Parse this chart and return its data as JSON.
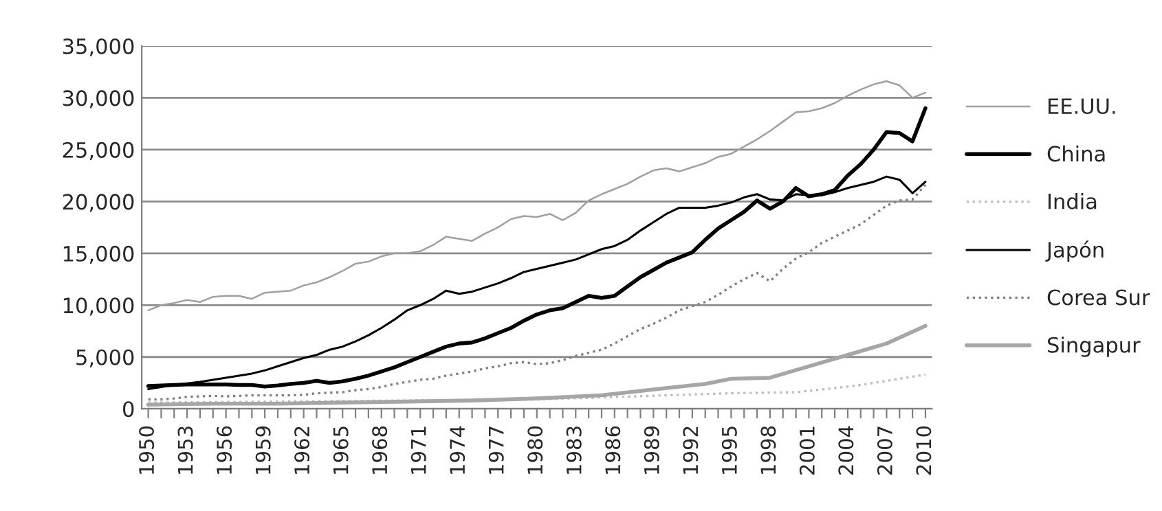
{
  "chart_data": {
    "type": "line",
    "x": [
      1950,
      1951,
      1952,
      1953,
      1954,
      1955,
      1956,
      1957,
      1958,
      1959,
      1960,
      1961,
      1962,
      1963,
      1964,
      1965,
      1966,
      1967,
      1968,
      1969,
      1970,
      1971,
      1972,
      1973,
      1974,
      1975,
      1976,
      1977,
      1978,
      1979,
      1980,
      1981,
      1982,
      1983,
      1984,
      1985,
      1986,
      1987,
      1988,
      1989,
      1990,
      1991,
      1992,
      1993,
      1994,
      1995,
      1996,
      1997,
      1998,
      1999,
      2000,
      2001,
      2002,
      2003,
      2004,
      2005,
      2006,
      2007,
      2008,
      2009,
      2010
    ],
    "series": [
      {
        "name": "EE.UU.",
        "color": "#a0a0a0",
        "line_style": "solid",
        "values": [
          9500,
          10000,
          10200,
          10500,
          10300,
          10800,
          10900,
          10900,
          10600,
          11200,
          11300,
          11400,
          11900,
          12200,
          12700,
          13300,
          14000,
          14200,
          14700,
          15000,
          15000,
          15200,
          15800,
          16600,
          16400,
          16200,
          16900,
          17500,
          18300,
          18600,
          18500,
          18800,
          18200,
          18900,
          20100,
          20700,
          21200,
          21700,
          22400,
          23000,
          23200,
          22900,
          23300,
          23700,
          24300,
          24600,
          25300,
          26000,
          26800,
          27700,
          28600,
          28700,
          29000,
          29500,
          30200,
          30800,
          31300,
          31600,
          31200,
          30000,
          30500
        ]
      },
      {
        "name": "China",
        "color": "#000000",
        "line_style": "solid",
        "values": [
          2200,
          2250,
          2300,
          2350,
          2350,
          2350,
          2350,
          2300,
          2300,
          2150,
          2250,
          2400,
          2500,
          2700,
          2500,
          2650,
          2900,
          3200,
          3600,
          4000,
          4500,
          5000,
          5500,
          6000,
          6300,
          6400,
          6800,
          7300,
          7800,
          8500,
          9100,
          9500,
          9700,
          10300,
          10900,
          10700,
          10900,
          11800,
          12700,
          13400,
          14100,
          14600,
          15100,
          16300,
          17400,
          18200,
          19000,
          20100,
          19300,
          20000,
          21300,
          20500,
          20700,
          21100,
          22500,
          23600,
          25000,
          26700,
          26600,
          25800,
          29000
        ]
      },
      {
        "name": "India",
        "color": "#bdbdbd",
        "line_style": "dotted",
        "x": [
          1950,
          1955,
          1960,
          1965,
          1970,
          1975,
          1980,
          1985,
          1990,
          1995,
          2000,
          2003,
          2005,
          2008,
          2010
        ],
        "values": [
          600,
          650,
          700,
          750,
          800,
          850,
          900,
          1100,
          1300,
          1500,
          1600,
          2000,
          2300,
          2900,
          3300
        ]
      },
      {
        "name": "Japón",
        "color": "#000000",
        "line_style": "solid",
        "values": [
          1900,
          2100,
          2300,
          2450,
          2600,
          2800,
          3000,
          3200,
          3400,
          3700,
          4100,
          4500,
          4900,
          5200,
          5700,
          6000,
          6500,
          7100,
          7800,
          8600,
          9500,
          10000,
          10600,
          11400,
          11100,
          11300,
          11700,
          12100,
          12600,
          13200,
          13500,
          13800,
          14100,
          14400,
          14900,
          15400,
          15700,
          16300,
          17200,
          18000,
          18800,
          19400,
          19400,
          19400,
          19600,
          19900,
          20400,
          20700,
          20200,
          20100,
          20700,
          20600,
          20600,
          20900,
          21300,
          21600,
          21900,
          22400,
          22100,
          20800,
          21900
        ]
      },
      {
        "name": "Corea Sur",
        "color": "#808080",
        "line_style": "dotted",
        "values": [
          900,
          900,
          1000,
          1150,
          1200,
          1250,
          1200,
          1250,
          1300,
          1300,
          1300,
          1300,
          1350,
          1500,
          1550,
          1600,
          1800,
          1900,
          2100,
          2400,
          2600,
          2800,
          2900,
          3200,
          3400,
          3600,
          3900,
          4100,
          4400,
          4500,
          4300,
          4400,
          4700,
          5100,
          5400,
          5700,
          6300,
          7000,
          7700,
          8200,
          8800,
          9500,
          9900,
          10300,
          11000,
          11800,
          12500,
          13100,
          12300,
          13500,
          14500,
          15100,
          16000,
          16600,
          17200,
          17800,
          18700,
          19600,
          20100,
          20200,
          21600
        ]
      },
      {
        "name": "Singapur",
        "color": "#a6a6a6",
        "line_style": "solid",
        "x": [
          1950,
          1955,
          1960,
          1965,
          1970,
          1975,
          1980,
          1985,
          1990,
          1993,
          1995,
          1998,
          2001,
          2004,
          2007,
          2010
        ],
        "values": [
          400,
          500,
          500,
          600,
          700,
          800,
          1000,
          1300,
          2000,
          2400,
          2900,
          3000,
          4100,
          5200,
          6300,
          8000
        ]
      }
    ],
    "xlim": [
      1949.5,
      2010.5
    ],
    "xticks": [
      1950,
      {
        "value": 1951,
        "label": null
      },
      {
        "value": 1952,
        "label": null
      },
      1953,
      {
        "value": 1954,
        "label": null
      },
      {
        "value": 1955,
        "label": null
      },
      1956,
      {
        "value": 1957,
        "label": null
      },
      {
        "value": 1958,
        "label": null
      },
      1959,
      {
        "value": 1960,
        "label": null
      },
      {
        "value": 1961,
        "label": null
      },
      1962,
      {
        "value": 1963,
        "label": null
      },
      {
        "value": 1964,
        "label": null
      },
      1965,
      {
        "value": 1966,
        "label": null
      },
      {
        "value": 1967,
        "label": null
      },
      1968,
      {
        "value": 1969,
        "label": null
      },
      {
        "value": 1970,
        "label": null
      },
      1971,
      {
        "value": 1972,
        "label": null
      },
      {
        "value": 1973,
        "label": null
      },
      1974,
      {
        "value": 1975,
        "label": null
      },
      {
        "value": 1976,
        "label": null
      },
      1977,
      {
        "value": 1978,
        "label": null
      },
      {
        "value": 1979,
        "label": null
      },
      1980,
      {
        "value": 1981,
        "label": null
      },
      {
        "value": 1982,
        "label": null
      },
      1983,
      {
        "value": 1984,
        "label": null
      },
      {
        "value": 1985,
        "label": null
      },
      1986,
      {
        "value": 1987,
        "label": null
      },
      {
        "value": 1988,
        "label": null
      },
      1989,
      {
        "value": 1990,
        "label": null
      },
      {
        "value": 1991,
        "label": null
      },
      1992,
      {
        "value": 1993,
        "label": null
      },
      {
        "value": 1994,
        "label": null
      },
      1995,
      {
        "value": 1996,
        "label": null
      },
      {
        "value": 1997,
        "label": null
      },
      1998,
      {
        "value": 1999,
        "label": null
      },
      {
        "value": 2000,
        "label": null
      },
      2001,
      {
        "value": 2002,
        "label": null
      },
      {
        "value": 2003,
        "label": null
      },
      2004,
      {
        "value": 2005,
        "label": null
      },
      {
        "value": 2006,
        "label": null
      },
      2007,
      {
        "value": 2008,
        "label": null
      },
      {
        "value": 2009,
        "label": null
      },
      2010
    ],
    "ylim": [
      0,
      35000
    ],
    "yticks": [
      {
        "value": 0,
        "label": "0"
      },
      {
        "value": 5000,
        "label": "5,000"
      },
      {
        "value": 10000,
        "label": "10,000"
      },
      {
        "value": 15000,
        "label": "15,000"
      },
      {
        "value": 20000,
        "label": "20,000"
      },
      {
        "value": 25000,
        "label": "25,000"
      },
      {
        "value": 30000,
        "label": "30,000"
      },
      {
        "value": 35000,
        "label": "35,000"
      }
    ],
    "grid": "y",
    "legend": "right",
    "marker": "none"
  }
}
